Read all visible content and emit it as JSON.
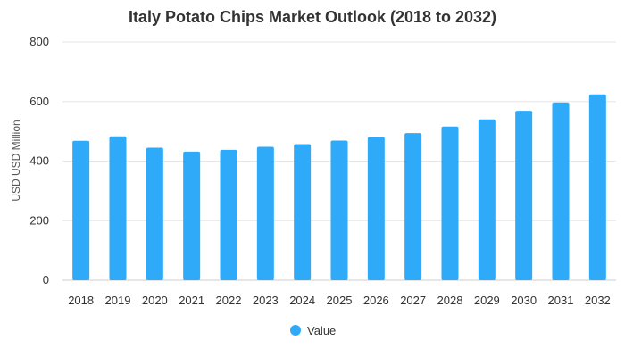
{
  "chart_data": {
    "type": "bar",
    "title": "Italy Potato Chips Market Outlook (2018 to 2032)",
    "xlabel": "",
    "ylabel": "USD USD Million",
    "categories": [
      "2018",
      "2019",
      "2020",
      "2021",
      "2022",
      "2023",
      "2024",
      "2025",
      "2026",
      "2027",
      "2028",
      "2029",
      "2030",
      "2031",
      "2032"
    ],
    "series": [
      {
        "name": "Value",
        "values": [
          468,
          483,
          445,
          432,
          438,
          448,
          457,
          469,
          481,
          494,
          516,
          540,
          569,
          597,
          624
        ]
      }
    ],
    "ylim": [
      0,
      800
    ],
    "yticks": [
      0,
      200,
      400,
      600,
      800
    ],
    "grid": true,
    "legend_position": "bottom",
    "colors": {
      "bar": "#2eaaf9",
      "grid": "#e6e6e6"
    }
  }
}
